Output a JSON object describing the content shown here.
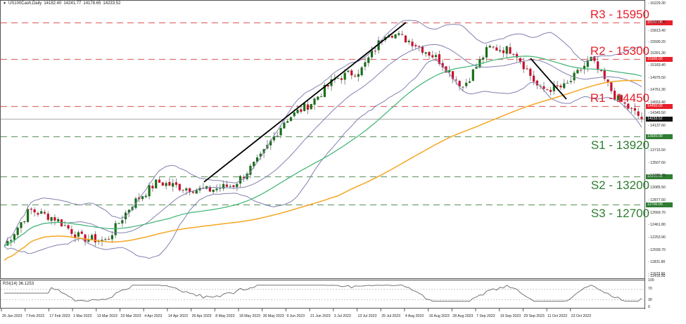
{
  "header": {
    "symbol": "US100Cash,Daily",
    "open": "14182.40",
    "high": "14241.77",
    "low": "14178.65",
    "close": "14233.52"
  },
  "rsi_panel": {
    "label": "RSI(14) 36.1253",
    "axis": [
      "100",
      "70",
      "30",
      "0"
    ]
  },
  "price_axis": {
    "ticks": [
      "16229.30",
      "16021.30",
      "15813.40",
      "15599.20",
      "15391.30",
      "15183.40",
      "14975.50",
      "14761.30",
      "14553.40",
      "14345.50",
      "14137.60",
      "13715.50",
      "13507.60",
      "13299.70",
      "13085.50",
      "12877.60",
      "12669.70",
      "12461.80",
      "12253.90",
      "12039.70",
      "11831.80",
      "11623.90",
      "11416.00"
    ],
    "current_price_tag": "14233.52"
  },
  "levels": [
    {
      "id": "r3",
      "label": "R3 - 15950",
      "tag": "15950.00",
      "value": 15950,
      "color": "#e8202a"
    },
    {
      "id": "r2",
      "label": "R2 - 15300",
      "tag": "15300.00",
      "value": 15300,
      "color": "#e8202a"
    },
    {
      "id": "r1",
      "label": "R1 - 14450",
      "tag": "14450.00",
      "value": 14450,
      "color": "#e8202a"
    },
    {
      "id": "s1",
      "label": "S1 - 13920",
      "tag": "13920.00",
      "value": 13920,
      "color": "#2e7d32"
    },
    {
      "id": "s2",
      "label": "S2 - 13200",
      "tag": "13200.00",
      "value": 13200,
      "color": "#2e7d32"
    },
    {
      "id": "s3",
      "label": "S3 - 12700",
      "tag": "12700.00",
      "value": 12700,
      "color": "#2e7d32"
    }
  ],
  "date_axis": [
    "26 Jan 2023",
    "7 Feb 2023",
    "17 Feb 2023",
    "1 Mar 2023",
    "13 Mar 2023",
    "23 Mar 2023",
    "4 Apr 2023",
    "14 Apr 2023",
    "26 Apr 2023",
    "8 May 2023",
    "18 May 2023",
    "30 May 2023",
    "9 Jun 2023",
    "21 Jun 2023",
    "3 Jul 2023",
    "13 Jul 2023",
    "25 Jul 2023",
    "4 Aug 2023",
    "16 Aug 2023",
    "28 Aug 2023",
    "7 Sep 2023",
    "19 Sep 2023",
    "29 Sep 2023",
    "11 Oct 2023",
    "23 Oct 2023"
  ],
  "colors": {
    "bull": "#1a6e1a",
    "bear": "#c8102e",
    "wick": "#888888",
    "bollinger": "#8080b0",
    "ma_fast": "#3cb371",
    "ma_slow": "#f5a623",
    "trendline": "#000000",
    "resistance": "#e07070",
    "support": "#70a070",
    "current_tag_bg": "#111111"
  },
  "chart_data": {
    "type": "candlestick",
    "title": "US100Cash,Daily",
    "instrument": "US100Cash",
    "timeframe": "Daily",
    "ohlc_header": {
      "open": 14182.4,
      "high": 14241.77,
      "low": 14178.65,
      "close": 14233.52
    },
    "ylim": [
      11416.0,
      16229.3
    ],
    "x_range": [
      "26 Jan 2023",
      "25 Oct 2023"
    ],
    "horizontal_levels": [
      {
        "name": "R3",
        "value": 15950
      },
      {
        "name": "R2",
        "value": 15300
      },
      {
        "name": "R1",
        "value": 14450
      },
      {
        "name": "S1",
        "value": 13920
      },
      {
        "name": "S2",
        "value": 13200
      },
      {
        "name": "S3",
        "value": 12700
      }
    ],
    "approx_close_path": {
      "x": [
        "26 Jan",
        "7 Feb",
        "17 Feb",
        "1 Mar",
        "13 Mar",
        "23 Mar",
        "4 Apr",
        "14 Apr",
        "26 Apr",
        "8 May",
        "18 May",
        "30 May",
        "9 Jun",
        "21 Jun",
        "3 Jul",
        "13 Jul",
        "25 Jul",
        "4 Aug",
        "16 Aug",
        "28 Aug",
        "7 Sep",
        "19 Sep",
        "29 Sep",
        "11 Oct",
        "23 Oct",
        "25 Oct"
      ],
      "y": [
        11950,
        12600,
        12450,
        12100,
        12050,
        12700,
        13100,
        13000,
        12950,
        13050,
        13500,
        14200,
        14500,
        14950,
        15100,
        15800,
        15600,
        15300,
        14800,
        15500,
        15450,
        14750,
        14800,
        15300,
        14600,
        14233.52
      ]
    },
    "indicators": [
      {
        "name": "Bollinger Bands",
        "color": "#8080b0"
      },
      {
        "name": "Moving Average (fast)",
        "color": "#3cb371"
      },
      {
        "name": "Moving Average (slow)",
        "color": "#f5a623"
      },
      {
        "name": "RSI(14)",
        "value": 36.1253,
        "levels": [
          70,
          30
        ],
        "ylim": [
          0,
          100
        ]
      }
    ],
    "trendlines": [
      {
        "name": "uptrend",
        "from": [
          "2 May 2023",
          13100
        ],
        "to": [
          "1 Aug 2023",
          15950
        ]
      },
      {
        "name": "downtrend",
        "from": [
          "11 Oct 2023",
          15330
        ],
        "to": [
          "26 Oct 2023",
          14780
        ]
      }
    ]
  }
}
